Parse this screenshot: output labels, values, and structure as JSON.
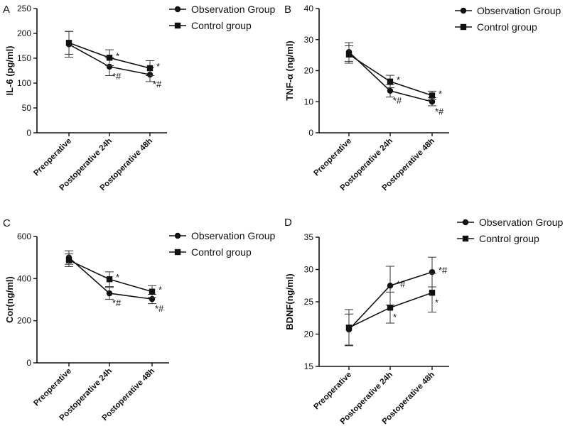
{
  "figure": {
    "panels": [
      "A",
      "B",
      "C",
      "D"
    ]
  },
  "chart_data": [
    {
      "panel": "A",
      "type": "line",
      "categories": [
        "Preoperative",
        "Postoperative 24h",
        "Postoperative 48h"
      ],
      "ylabel": "IL-6 (pg/ml)",
      "ylim": [
        0,
        250
      ],
      "yticks": [
        0,
        50,
        100,
        150,
        200,
        250
      ],
      "series": [
        {
          "name": "Observation Group",
          "marker": "circle",
          "values": [
            178,
            133,
            117
          ],
          "errors": [
            26,
            18,
            14
          ]
        },
        {
          "name": "Control group",
          "marker": "square",
          "values": [
            181,
            151,
            130
          ],
          "errors": [
            23,
            16,
            15
          ]
        }
      ],
      "annotations": [
        {
          "series": "Control group",
          "category": "Postoperative 24h",
          "text": "*",
          "position": "right"
        },
        {
          "series": "Observation Group",
          "category": "Postoperative 24h",
          "text": "*#",
          "position": "below-right"
        },
        {
          "series": "Control group",
          "category": "Postoperative 48h",
          "text": "*",
          "position": "right"
        },
        {
          "series": "Observation Group",
          "category": "Postoperative 48h",
          "text": "*#",
          "position": "below-right"
        }
      ]
    },
    {
      "panel": "B",
      "type": "line",
      "categories": [
        "Preoperative",
        "Postoperative 24h",
        "Postoperative 48h"
      ],
      "ylabel": "TNF-α (ng/ml)",
      "ylim": [
        0,
        40
      ],
      "yticks": [
        0,
        10,
        20,
        30,
        40
      ],
      "series": [
        {
          "name": "Observation Group",
          "marker": "circle",
          "values": [
            26,
            13.5,
            10
          ],
          "errors": [
            3,
            2,
            1.3
          ]
        },
        {
          "name": "Control group",
          "marker": "square",
          "values": [
            25.2,
            16.5,
            12
          ],
          "errors": [
            2.8,
            2,
            1.4
          ]
        }
      ],
      "annotations": [
        {
          "series": "Control group",
          "category": "Postoperative 24h",
          "text": "*",
          "position": "right"
        },
        {
          "series": "Observation Group",
          "category": "Postoperative 24h",
          "text": "*#",
          "position": "below-right"
        },
        {
          "series": "Control group",
          "category": "Postoperative 48h",
          "text": "*",
          "position": "right"
        },
        {
          "series": "Observation Group",
          "category": "Postoperative 48h",
          "text": "*#",
          "position": "below-right"
        }
      ]
    },
    {
      "panel": "C",
      "type": "line",
      "categories": [
        "Preoperative",
        "Postoperative 24h",
        "Postoperative 48h"
      ],
      "ylabel": "Cor(ng/ml)",
      "ylim": [
        0,
        600
      ],
      "yticks": [
        0,
        200,
        400,
        600
      ],
      "series": [
        {
          "name": "Observation Group",
          "marker": "circle",
          "values": [
            500,
            330,
            303
          ],
          "errors": [
            32,
            28,
            22
          ]
        },
        {
          "name": "Control group",
          "marker": "square",
          "values": [
            487,
            397,
            338
          ],
          "errors": [
            30,
            35,
            28
          ]
        }
      ],
      "annotations": [
        {
          "series": "Control group",
          "category": "Postoperative 24h",
          "text": "*",
          "position": "right"
        },
        {
          "series": "Observation Group",
          "category": "Postoperative 24h",
          "text": "*#",
          "position": "below-right"
        },
        {
          "series": "Control group",
          "category": "Postoperative 48h",
          "text": "*",
          "position": "right"
        },
        {
          "series": "Observation Group",
          "category": "Postoperative 48h",
          "text": "*#",
          "position": "below-right"
        }
      ]
    },
    {
      "panel": "D",
      "type": "line",
      "categories": [
        "Preoperative",
        "Postoperative 24h",
        "Postoperative 48h"
      ],
      "ylabel": "BDNF(ng/ml)",
      "ylim": [
        15,
        35
      ],
      "yticks": [
        15,
        20,
        25,
        30,
        35
      ],
      "series": [
        {
          "name": "Observation Group",
          "marker": "circle",
          "values": [
            20.7,
            27.5,
            29.6
          ],
          "errors": [
            2.4,
            3,
            2.3
          ]
        },
        {
          "name": "Control group",
          "marker": "square",
          "values": [
            21,
            24.1,
            26.4
          ],
          "errors": [
            2.8,
            2.4,
            3
          ]
        }
      ],
      "annotations": [
        {
          "series": "Observation Group",
          "category": "Postoperative 24h",
          "text": "*#",
          "position": "right"
        },
        {
          "series": "Control group",
          "category": "Postoperative 24h",
          "text": "*",
          "position": "below-right"
        },
        {
          "series": "Observation Group",
          "category": "Postoperative 48h",
          "text": "*#",
          "position": "right"
        },
        {
          "series": "Control group",
          "category": "Postoperative 48h",
          "text": "*",
          "position": "below-right"
        }
      ]
    }
  ]
}
